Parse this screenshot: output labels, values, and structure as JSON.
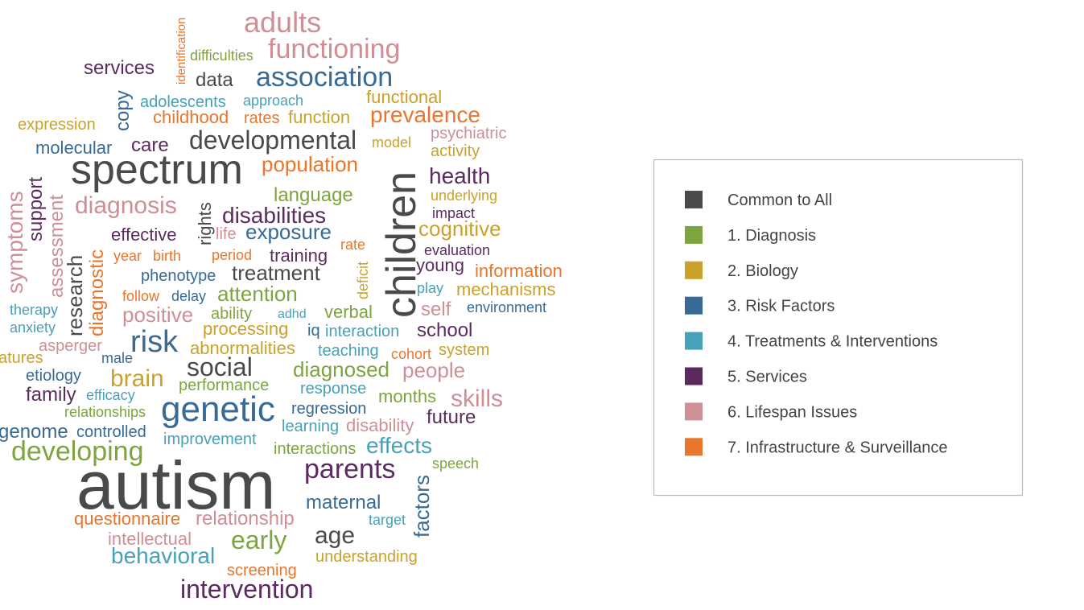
{
  "words": [
    {
      "text": "adults",
      "group": 6
    },
    {
      "text": "identification",
      "group": 7
    },
    {
      "text": "functioning",
      "group": 6
    },
    {
      "text": "difficulties",
      "group": 1
    },
    {
      "text": "services",
      "group": 5
    },
    {
      "text": "data",
      "group": 0
    },
    {
      "text": "association",
      "group": 3
    },
    {
      "text": "copy",
      "group": 3
    },
    {
      "text": "adolescents",
      "group": 4
    },
    {
      "text": "approach",
      "group": 4
    },
    {
      "text": "functional",
      "group": 2
    },
    {
      "text": "expression",
      "group": 2
    },
    {
      "text": "childhood",
      "group": 7
    },
    {
      "text": "rates",
      "group": 7
    },
    {
      "text": "function",
      "group": 2
    },
    {
      "text": "prevalence",
      "group": 7
    },
    {
      "text": "psychiatric",
      "group": 6
    },
    {
      "text": "molecular",
      "group": 3
    },
    {
      "text": "care",
      "group": 5
    },
    {
      "text": "developmental",
      "group": 0
    },
    {
      "text": "model",
      "group": 2
    },
    {
      "text": "activity",
      "group": 2
    },
    {
      "text": "spectrum",
      "group": 0
    },
    {
      "text": "population",
      "group": 7
    },
    {
      "text": "children",
      "group": 0
    },
    {
      "text": "symptoms",
      "group": 6
    },
    {
      "text": "support",
      "group": 5
    },
    {
      "text": "assessment",
      "group": 6
    },
    {
      "text": "health",
      "group": 5
    },
    {
      "text": "diagnosis",
      "group": 6
    },
    {
      "text": "language",
      "group": 1
    },
    {
      "text": "rights",
      "group": 0
    },
    {
      "text": "underlying",
      "group": 2
    },
    {
      "text": "disabilities",
      "group": 5
    },
    {
      "text": "impact",
      "group": 5
    },
    {
      "text": "research",
      "group": 0
    },
    {
      "text": "diagnostic",
      "group": 7
    },
    {
      "text": "effective",
      "group": 5
    },
    {
      "text": "life",
      "group": 6
    },
    {
      "text": "exposure",
      "group": 3
    },
    {
      "text": "cognitive",
      "group": 2
    },
    {
      "text": "year",
      "group": 7
    },
    {
      "text": "birth",
      "group": 7
    },
    {
      "text": "period",
      "group": 7
    },
    {
      "text": "training",
      "group": 5
    },
    {
      "text": "rate",
      "group": 7
    },
    {
      "text": "deficit",
      "group": 2
    },
    {
      "text": "evaluation",
      "group": 5
    },
    {
      "text": "young",
      "group": 5
    },
    {
      "text": "information",
      "group": 7
    },
    {
      "text": "treatment",
      "group": 0
    },
    {
      "text": "phenotype",
      "group": 3
    },
    {
      "text": "follow",
      "group": 7
    },
    {
      "text": "delay",
      "group": 3
    },
    {
      "text": "attention",
      "group": 1
    },
    {
      "text": "play",
      "group": 4
    },
    {
      "text": "mechanisms",
      "group": 2
    },
    {
      "text": "therapy",
      "group": 4
    },
    {
      "text": "positive",
      "group": 6
    },
    {
      "text": "ability",
      "group": 1
    },
    {
      "text": "adhd",
      "group": 4
    },
    {
      "text": "verbal",
      "group": 1
    },
    {
      "text": "self",
      "group": 6
    },
    {
      "text": "environment",
      "group": 3
    },
    {
      "text": "anxiety",
      "group": 4
    },
    {
      "text": "processing",
      "group": 2
    },
    {
      "text": "iq",
      "group": 3
    },
    {
      "text": "interaction",
      "group": 4
    },
    {
      "text": "school",
      "group": 5
    },
    {
      "text": "risk",
      "group": 3
    },
    {
      "text": "asperger",
      "group": 6
    },
    {
      "text": "abnormalities",
      "group": 2
    },
    {
      "text": "teaching",
      "group": 4
    },
    {
      "text": "cohort",
      "group": 7
    },
    {
      "text": "system",
      "group": 2
    },
    {
      "text": "atures",
      "group": 2
    },
    {
      "text": "male",
      "group": 3
    },
    {
      "text": "etiology",
      "group": 3
    },
    {
      "text": "social",
      "group": 0
    },
    {
      "text": "diagnosed",
      "group": 1
    },
    {
      "text": "people",
      "group": 6
    },
    {
      "text": "brain",
      "group": 2
    },
    {
      "text": "performance",
      "group": 1
    },
    {
      "text": "family",
      "group": 5
    },
    {
      "text": "efficacy",
      "group": 4
    },
    {
      "text": "response",
      "group": 4
    },
    {
      "text": "months",
      "group": 1
    },
    {
      "text": "skills",
      "group": 6
    },
    {
      "text": "genetic",
      "group": 3
    },
    {
      "text": "relationships",
      "group": 1
    },
    {
      "text": "regression",
      "group": 3
    },
    {
      "text": "learning",
      "group": 4
    },
    {
      "text": "disability",
      "group": 6
    },
    {
      "text": "future",
      "group": 5
    },
    {
      "text": "genome",
      "group": 3
    },
    {
      "text": "controlled",
      "group": 3
    },
    {
      "text": "improvement",
      "group": 4
    },
    {
      "text": "interactions",
      "group": 1
    },
    {
      "text": "effects",
      "group": 4
    },
    {
      "text": "developing",
      "group": 1
    },
    {
      "text": "speech",
      "group": 1
    },
    {
      "text": "autism",
      "group": 0
    },
    {
      "text": "parents",
      "group": 5
    },
    {
      "text": "factors",
      "group": 3
    },
    {
      "text": "maternal",
      "group": 3
    },
    {
      "text": "questionnaire",
      "group": 7
    },
    {
      "text": "relationship",
      "group": 6
    },
    {
      "text": "target",
      "group": 4
    },
    {
      "text": "intellectual",
      "group": 6
    },
    {
      "text": "early",
      "group": 1
    },
    {
      "text": "age",
      "group": 0
    },
    {
      "text": "behavioral",
      "group": 4
    },
    {
      "text": "understanding",
      "group": 2
    },
    {
      "text": "screening",
      "group": 7
    },
    {
      "text": "intervention",
      "group": 5
    }
  ],
  "legend": {
    "items": [
      {
        "label": "Common to All",
        "color": "#4a4a4a"
      },
      {
        "label": "1.  Diagnosis",
        "color": "#7ea43e"
      },
      {
        "label": "2.  Biology",
        "color": "#caa22a"
      },
      {
        "label": "3.  Risk Factors",
        "color": "#386a96"
      },
      {
        "label": "4.  Treatments & Interventions",
        "color": "#46a1b9"
      },
      {
        "label": "5.  Services",
        "color": "#5b2b60"
      },
      {
        "label": "6.  Lifespan Issues",
        "color": "#cf8f96"
      },
      {
        "label": "7.  Infrastructure & Surveillance",
        "color": "#e8762d"
      }
    ]
  }
}
